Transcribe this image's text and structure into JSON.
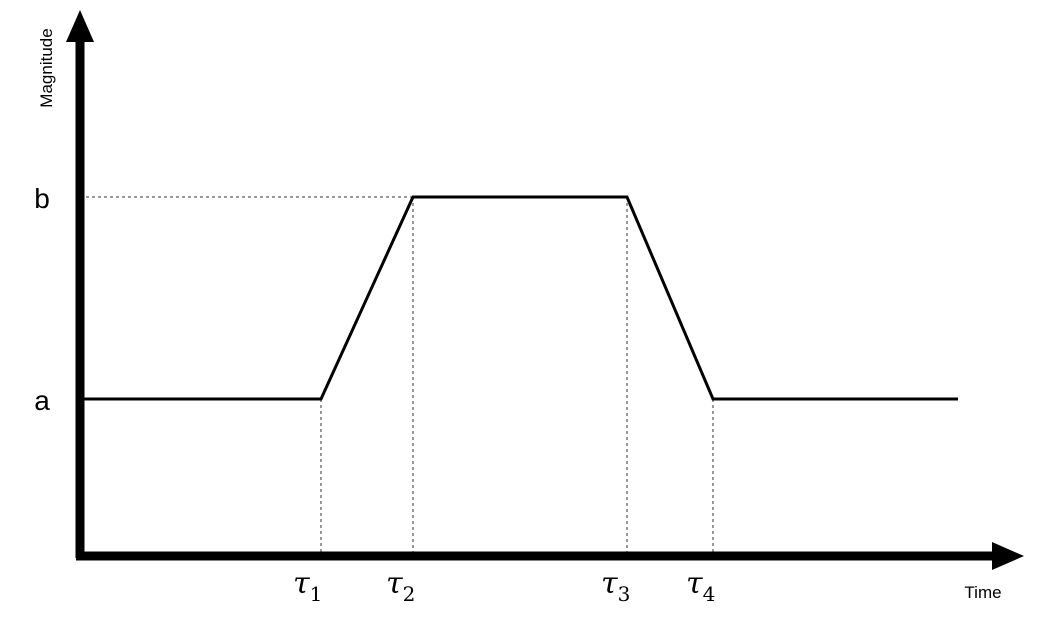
{
  "diagram": {
    "y_axis_label": "Magnitude",
    "x_axis_label": "Time",
    "level_labels": {
      "low": "a",
      "high": "b"
    },
    "tau_labels": [
      {
        "symbol": "τ",
        "sub": "1"
      },
      {
        "symbol": "τ",
        "sub": "2"
      },
      {
        "symbol": "τ",
        "sub": "3"
      },
      {
        "symbol": "τ",
        "sub": "4"
      }
    ],
    "profile": {
      "levels": [
        "a",
        "a",
        "b",
        "b",
        "a",
        "a"
      ],
      "breakpoints": [
        "start",
        "τ1",
        "τ2",
        "τ3",
        "τ4",
        "end"
      ]
    }
  }
}
